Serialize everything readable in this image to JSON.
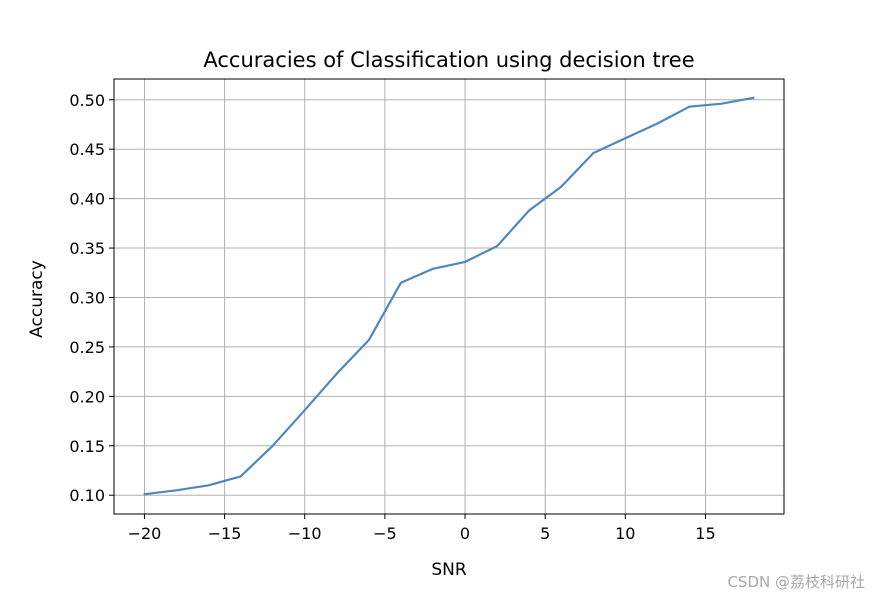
{
  "chart_data": {
    "type": "line",
    "title": "Accuracies of Classification using decision tree",
    "xlabel": "SNR",
    "ylabel": "Accuracy",
    "xlim": [
      -21.9,
      19.9
    ],
    "ylim": [
      0.081,
      0.521
    ],
    "xticks": [
      -20,
      -15,
      -10,
      -5,
      0,
      5,
      10,
      15
    ],
    "xtick_labels": [
      "−20",
      "−15",
      "−10",
      "−5",
      "0",
      "5",
      "10",
      "15"
    ],
    "yticks": [
      0.1,
      0.15,
      0.2,
      0.25,
      0.3,
      0.35,
      0.4,
      0.45,
      0.5
    ],
    "ytick_labels": [
      "0.10",
      "0.15",
      "0.20",
      "0.25",
      "0.30",
      "0.35",
      "0.40",
      "0.45",
      "0.50"
    ],
    "grid": true,
    "line_color": "#4f86bf",
    "series": [
      {
        "x": [
          -20,
          -18,
          -16,
          -14,
          -12,
          -10,
          -8,
          -6,
          -4,
          -2,
          0,
          2,
          4,
          6,
          8,
          10,
          12,
          14,
          16,
          18
        ],
        "y": [
          0.101,
          0.105,
          0.11,
          0.119,
          0.15,
          0.186,
          0.223,
          0.257,
          0.315,
          0.329,
          0.336,
          0.352,
          0.388,
          0.412,
          0.446,
          0.461,
          0.476,
          0.493,
          0.496,
          0.502
        ]
      }
    ]
  },
  "watermark": "CSDN @荔枝科研社"
}
